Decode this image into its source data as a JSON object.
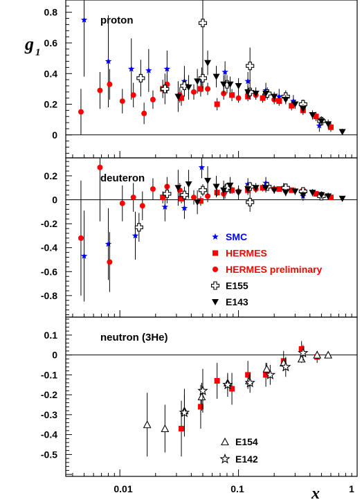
{
  "figure": {
    "ylabel": "g",
    "ylabel_sub": "1",
    "xlabel": "x",
    "x_ticks": [
      "0.01",
      "0.1",
      "1"
    ]
  },
  "colors": {
    "SMC": "#0000ff",
    "HERMES": "#ff0000",
    "HERMES preliminary": "#ff0000",
    "E155": "#000000",
    "E143": "#000000",
    "E154": "#000000",
    "E142": "#000000"
  },
  "chart_data": [
    {
      "type": "scatter",
      "title": "proton",
      "xscale": "log",
      "xlim": [
        0.0035,
        1.0
      ],
      "ylim": [
        -0.15,
        0.88
      ],
      "yticks": [
        0,
        0.2,
        0.4,
        0.6,
        0.8
      ],
      "series": [
        {
          "name": "SMC",
          "marker": "star-filled",
          "points": [
            [
              0.005,
              0.75,
              0.37
            ],
            [
              0.008,
              0.48,
              0.3
            ],
            [
              0.0125,
              0.43,
              0.2
            ],
            [
              0.0175,
              0.42,
              0.14
            ],
            [
              0.025,
              0.43,
              0.12
            ],
            [
              0.035,
              0.35,
              0.1
            ],
            [
              0.049,
              0.36,
              0.08
            ],
            [
              0.077,
              0.41,
              0.07
            ],
            [
              0.12,
              0.35,
              0.06
            ],
            [
              0.17,
              0.29,
              0.05
            ],
            [
              0.22,
              0.25,
              0.05
            ],
            [
              0.29,
              0.22,
              0.04
            ],
            [
              0.35,
              0.19,
              0.04
            ],
            [
              0.48,
              0.06,
              0.04
            ]
          ]
        },
        {
          "name": "HERMES",
          "marker": "square",
          "points": [
            [
              0.023,
              0.3,
              0.06
            ],
            [
              0.033,
              0.24,
              0.05
            ],
            [
              0.048,
              0.3,
              0.05
            ],
            [
              0.066,
              0.2,
              0.04
            ],
            [
              0.088,
              0.26,
              0.04
            ],
            [
              0.12,
              0.25,
              0.03
            ],
            [
              0.16,
              0.24,
              0.03
            ],
            [
              0.22,
              0.22,
              0.03
            ],
            [
              0.28,
              0.19,
              0.03
            ],
            [
              0.35,
              0.16,
              0.03
            ],
            [
              0.45,
              0.12,
              0.03
            ],
            [
              0.6,
              0.05,
              0.03
            ]
          ]
        },
        {
          "name": "HERMES preliminary",
          "marker": "circle",
          "points": [
            [
              0.0047,
              0.15,
              0.15
            ],
            [
              0.0068,
              0.29,
              0.12
            ],
            [
              0.0082,
              0.33,
              0.1
            ],
            [
              0.0105,
              0.22,
              0.08
            ],
            [
              0.013,
              0.26,
              0.08
            ],
            [
              0.016,
              0.14,
              0.07
            ],
            [
              0.019,
              0.23,
              0.06
            ],
            [
              0.025,
              0.33,
              0.06
            ],
            [
              0.032,
              0.26,
              0.05
            ],
            [
              0.042,
              0.28,
              0.05
            ],
            [
              0.055,
              0.3,
              0.04
            ],
            [
              0.075,
              0.27,
              0.04
            ],
            [
              0.1,
              0.24,
              0.03
            ],
            [
              0.14,
              0.26,
              0.03
            ],
            [
              0.2,
              0.23,
              0.03
            ]
          ]
        },
        {
          "name": "E155",
          "marker": "plus-open",
          "points": [
            [
              0.015,
              0.37,
              0.12
            ],
            [
              0.024,
              0.3,
              0.1
            ],
            [
              0.035,
              0.32,
              0.07
            ],
            [
              0.05,
              0.73,
              0.35
            ],
            [
              0.05,
              0.37,
              0.07
            ],
            [
              0.08,
              0.33,
              0.06
            ],
            [
              0.125,
              0.45,
              0.12
            ],
            [
              0.125,
              0.28,
              0.05
            ],
            [
              0.175,
              0.27,
              0.04
            ],
            [
              0.25,
              0.25,
              0.04
            ],
            [
              0.35,
              0.2,
              0.03
            ],
            [
              0.5,
              0.09,
              0.03
            ]
          ]
        },
        {
          "name": "E143",
          "marker": "triangle-down",
          "points": [
            [
              0.031,
              0.25,
              0.1
            ],
            [
              0.038,
              0.31,
              0.08
            ],
            [
              0.045,
              0.35,
              0.08
            ],
            [
              0.055,
              0.47,
              0.08
            ],
            [
              0.065,
              0.38,
              0.07
            ],
            [
              0.075,
              0.33,
              0.06
            ],
            [
              0.085,
              0.33,
              0.05
            ],
            [
              0.1,
              0.32,
              0.05
            ],
            [
              0.12,
              0.28,
              0.04
            ],
            [
              0.14,
              0.27,
              0.04
            ],
            [
              0.17,
              0.27,
              0.03
            ],
            [
              0.2,
              0.25,
              0.03
            ],
            [
              0.25,
              0.23,
              0.03
            ],
            [
              0.3,
              0.2,
              0.03
            ],
            [
              0.35,
              0.17,
              0.03
            ],
            [
              0.42,
              0.13,
              0.03
            ],
            [
              0.5,
              0.09,
              0.03
            ],
            [
              0.57,
              0.07,
              0.03
            ],
            [
              0.75,
              0.02,
              0.02
            ]
          ]
        }
      ]
    },
    {
      "type": "scatter",
      "title": "deuteron",
      "xscale": "log",
      "xlim": [
        0.0035,
        1.0
      ],
      "ylim": [
        -0.98,
        0.35
      ],
      "yticks": [
        -0.8,
        -0.6,
        -0.4,
        -0.2,
        0,
        0.2
      ],
      "series": [
        {
          "name": "SMC",
          "marker": "star-filled",
          "points": [
            [
              0.005,
              -0.47,
              0.38
            ],
            [
              0.008,
              -0.37,
              0.3
            ],
            [
              0.0135,
              -0.3,
              0.2
            ],
            [
              0.024,
              -0.06,
              0.12
            ],
            [
              0.035,
              -0.07,
              0.09
            ],
            [
              0.049,
              0.27,
              0.09
            ],
            [
              0.077,
              0.07,
              0.06
            ],
            [
              0.12,
              0.13,
              0.05
            ],
            [
              0.17,
              0.14,
              0.05
            ],
            [
              0.24,
              0.1,
              0.04
            ],
            [
              0.35,
              0.03,
              0.04
            ]
          ]
        },
        {
          "name": "HERMES",
          "marker": "square",
          "points": [
            [
              0.023,
              0.02,
              0.05
            ],
            [
              0.033,
              0.01,
              0.04
            ],
            [
              0.048,
              -0.01,
              0.04
            ],
            [
              0.066,
              0.06,
              0.03
            ],
            [
              0.088,
              0.08,
              0.03
            ],
            [
              0.12,
              0.08,
              0.03
            ],
            [
              0.16,
              0.1,
              0.03
            ],
            [
              0.22,
              0.09,
              0.02
            ],
            [
              0.28,
              0.08,
              0.02
            ],
            [
              0.35,
              0.07,
              0.02
            ],
            [
              0.45,
              0.05,
              0.02
            ],
            [
              0.6,
              0.02,
              0.02
            ]
          ]
        },
        {
          "name": "HERMES preliminary",
          "marker": "circle",
          "points": [
            [
              0.0047,
              -0.32,
              0.48
            ],
            [
              0.0068,
              0.27,
              0.45
            ],
            [
              0.0082,
              -0.52,
              0.25
            ],
            [
              0.0105,
              -0.03,
              0.15
            ],
            [
              0.013,
              0.02,
              0.12
            ],
            [
              0.0155,
              -0.05,
              0.12
            ],
            [
              0.019,
              0.09,
              0.09
            ],
            [
              0.025,
              0.11,
              0.08
            ],
            [
              0.032,
              0.08,
              0.06
            ],
            [
              0.042,
              0.02,
              0.06
            ],
            [
              0.055,
              0.03,
              0.05
            ],
            [
              0.075,
              0.05,
              0.04
            ],
            [
              0.1,
              0.07,
              0.03
            ],
            [
              0.14,
              0.09,
              0.03
            ],
            [
              0.2,
              0.09,
              0.03
            ]
          ]
        },
        {
          "name": "E155",
          "marker": "plus-open",
          "points": [
            [
              0.0145,
              -0.23,
              0.12
            ],
            [
              0.025,
              0.05,
              0.08
            ],
            [
              0.035,
              0.04,
              0.07
            ],
            [
              0.05,
              0.08,
              0.05
            ],
            [
              0.08,
              0.1,
              0.04
            ],
            [
              0.125,
              -0.02,
              0.08
            ],
            [
              0.125,
              0.11,
              0.04
            ],
            [
              0.175,
              0.11,
              0.03
            ],
            [
              0.25,
              0.1,
              0.03
            ],
            [
              0.35,
              0.07,
              0.03
            ],
            [
              0.5,
              0.03,
              0.03
            ]
          ]
        },
        {
          "name": "E143",
          "marker": "triangle-down",
          "points": [
            [
              0.031,
              0.1,
              0.15
            ],
            [
              0.038,
              0.13,
              0.12
            ],
            [
              0.045,
              -0.02,
              0.1
            ],
            [
              0.055,
              0.16,
              0.12
            ],
            [
              0.065,
              0.11,
              0.09
            ],
            [
              0.075,
              0.08,
              0.08
            ],
            [
              0.085,
              0.12,
              0.07
            ],
            [
              0.1,
              0.06,
              0.06
            ],
            [
              0.12,
              0.09,
              0.05
            ],
            [
              0.14,
              0.1,
              0.04
            ],
            [
              0.17,
              0.1,
              0.04
            ],
            [
              0.2,
              0.08,
              0.03
            ],
            [
              0.25,
              0.06,
              0.03
            ],
            [
              0.3,
              0.07,
              0.03
            ],
            [
              0.35,
              0.04,
              0.03
            ],
            [
              0.42,
              0.06,
              0.03
            ],
            [
              0.5,
              0.04,
              0.03
            ],
            [
              0.57,
              0.03,
              0.03
            ],
            [
              0.75,
              0.01,
              0.02
            ]
          ]
        }
      ],
      "legend": {
        "position": "center-right",
        "entries": [
          "SMC",
          "HERMES",
          "HERMES preliminary",
          "E155",
          "E143"
        ]
      }
    },
    {
      "type": "scatter",
      "title": "neutron (3He)",
      "xscale": "log",
      "xlim": [
        0.0035,
        1.0
      ],
      "ylim": [
        -0.61,
        0.19
      ],
      "yticks": [
        -0.5,
        -0.4,
        -0.3,
        -0.2,
        -0.1,
        0,
        0.1
      ],
      "series": [
        {
          "name": "HERMES",
          "marker": "square",
          "points": [
            [
              0.033,
              -0.37,
              0.14
            ],
            [
              0.048,
              -0.26,
              0.11
            ],
            [
              0.066,
              -0.13,
              0.09
            ],
            [
              0.088,
              -0.17,
              0.08
            ],
            [
              0.12,
              -0.1,
              0.07
            ],
            [
              0.17,
              -0.1,
              0.06
            ],
            [
              0.24,
              -0.03,
              0.05
            ],
            [
              0.34,
              0.03,
              0.04
            ],
            [
              0.46,
              -0.01,
              0.03
            ]
          ]
        },
        {
          "name": "E154",
          "marker": "triangle-up-open",
          "points": [
            [
              0.017,
              -0.35,
              0.16
            ],
            [
              0.024,
              -0.37,
              0.12
            ],
            [
              0.035,
              -0.28,
              0.08
            ],
            [
              0.049,
              -0.21,
              0.07
            ],
            [
              0.081,
              -0.14,
              0.04
            ],
            [
              0.123,
              -0.13,
              0.03
            ],
            [
              0.173,
              -0.07,
              0.03
            ],
            [
              0.24,
              -0.04,
              0.02
            ],
            [
              0.34,
              -0.02,
              0.02
            ],
            [
              0.46,
              0.0,
              0.02
            ],
            [
              0.57,
              0.0,
              0.01
            ]
          ]
        },
        {
          "name": "E142",
          "marker": "star-open",
          "points": [
            [
              0.035,
              -0.29,
              0.12
            ],
            [
              0.05,
              -0.18,
              0.11
            ],
            [
              0.081,
              -0.15,
              0.06
            ],
            [
              0.125,
              -0.14,
              0.05
            ],
            [
              0.185,
              -0.1,
              0.05
            ],
            [
              0.25,
              -0.06,
              0.05
            ],
            [
              0.35,
              0.01,
              0.04
            ]
          ]
        }
      ],
      "legend": {
        "position": "bottom-right",
        "entries": [
          "E154",
          "E142"
        ]
      }
    }
  ]
}
